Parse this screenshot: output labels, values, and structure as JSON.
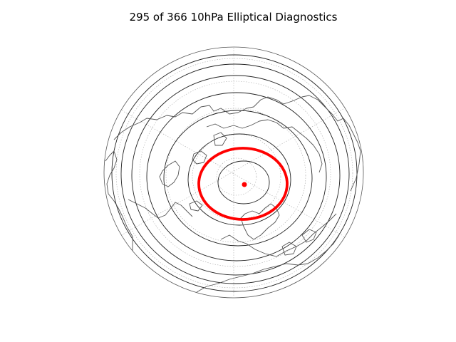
{
  "figure": {
    "title": "295 of 366 10hPa Elliptical Diagnostics"
  },
  "map": {
    "projection": "orthographic",
    "view": "northern-hemisphere",
    "graticule": "dotted",
    "coastlines": true,
    "contour_levels": 6
  },
  "diagnostics": {
    "vortex_ellipse_color": "#ff0000",
    "vortex_centroid_color": "#ff0000"
  },
  "colors": {
    "coastline": "#555555",
    "contour": "#222222",
    "graticule": "#aaaaaa",
    "highlight": "#ff0000"
  }
}
